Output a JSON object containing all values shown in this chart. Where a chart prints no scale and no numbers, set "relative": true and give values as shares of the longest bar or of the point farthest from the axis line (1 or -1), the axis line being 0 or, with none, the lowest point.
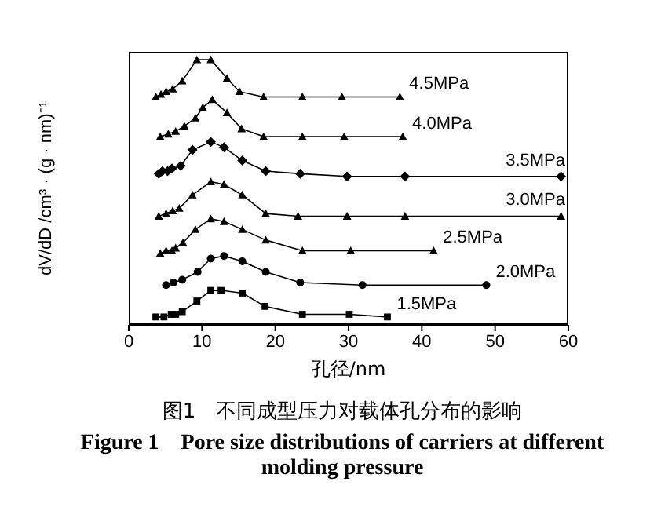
{
  "chart_data": {
    "type": "line",
    "title": "图1　不同成型压力对载体孔分布的影响",
    "subtitle": "Figure 1　Pore size distributions of carriers at different molding pressure",
    "xlabel": "孔径/nm",
    "ylabel": "dV/dD /cm³ · (g · nm)⁻¹",
    "relative": true,
    "xlim": [
      0,
      60
    ],
    "xticks": [
      0,
      10,
      20,
      30,
      40,
      50,
      60
    ],
    "line_style": "solid",
    "series": [
      {
        "name": "1.5MPa",
        "color": "#000000",
        "marker": "square",
        "x": [
          3.7,
          4.8,
          5.8,
          6.4,
          7.3,
          9.3,
          11.2,
          12.6,
          15.5,
          18.6,
          23.7,
          30.1,
          35.3
        ],
        "values": [
          0.03,
          0.03,
          0.04,
          0.04,
          0.05,
          0.09,
          0.13,
          0.13,
          0.12,
          0.07,
          0.04,
          0.04,
          0.03
        ]
      },
      {
        "name": "2.0MPa",
        "color": "#000000",
        "marker": "circle",
        "x": [
          5.1,
          6.1,
          7.3,
          9.4,
          11.2,
          13.0,
          15.5,
          18.7,
          23.4,
          31.9,
          48.8
        ],
        "values": [
          0.15,
          0.16,
          0.17,
          0.2,
          0.25,
          0.26,
          0.24,
          0.2,
          0.16,
          0.15,
          0.15
        ]
      },
      {
        "name": "2.5MPa",
        "color": "#000000",
        "marker": "triangle",
        "x": [
          4.3,
          5.1,
          5.9,
          6.4,
          7.4,
          9.1,
          11.2,
          13.0,
          15.5,
          18.7,
          23.7,
          30.3,
          41.6
        ],
        "values": [
          0.27,
          0.28,
          0.28,
          0.29,
          0.31,
          0.36,
          0.4,
          0.39,
          0.36,
          0.32,
          0.28,
          0.28,
          0.28
        ]
      },
      {
        "name": "3.0MPa",
        "color": "#000000",
        "marker": "triangle",
        "x": [
          4.1,
          5.1,
          6.0,
          6.9,
          8.7,
          11.2,
          13.0,
          15.5,
          18.7,
          23.1,
          29.8,
          37.7,
          59.0
        ],
        "values": [
          0.41,
          0.42,
          0.43,
          0.44,
          0.49,
          0.54,
          0.53,
          0.49,
          0.42,
          0.41,
          0.41,
          0.41,
          0.41
        ]
      },
      {
        "name": "3.5MPa",
        "color": "#000000",
        "marker": "diamond",
        "x": [
          4.1,
          4.6,
          5.3,
          5.9,
          7.1,
          8.7,
          11.2,
          13.0,
          15.5,
          18.7,
          23.4,
          29.8,
          37.7,
          59.0
        ],
        "values": [
          0.57,
          0.58,
          0.58,
          0.59,
          0.6,
          0.66,
          0.69,
          0.67,
          0.62,
          0.58,
          0.57,
          0.56,
          0.56,
          0.56
        ]
      },
      {
        "name": "4.0MPa",
        "color": "#000000",
        "marker": "triangle",
        "x": [
          4.3,
          5.4,
          6.4,
          7.6,
          9.1,
          10.1,
          11.4,
          13.4,
          15.4,
          18.4,
          23.7,
          29.4,
          37.4
        ],
        "values": [
          0.71,
          0.72,
          0.73,
          0.75,
          0.78,
          0.82,
          0.85,
          0.8,
          0.74,
          0.71,
          0.71,
          0.71,
          0.71
        ]
      },
      {
        "name": "4.5MPa",
        "color": "#000000",
        "marker": "triangle",
        "x": [
          3.7,
          4.4,
          5.1,
          6.0,
          7.3,
          9.3,
          11.2,
          13.4,
          15.1,
          18.4,
          23.7,
          29.1,
          37.0
        ],
        "values": [
          0.86,
          0.87,
          0.88,
          0.89,
          0.92,
          1,
          1,
          0.93,
          0.88,
          0.86,
          0.86,
          0.86,
          0.86
        ]
      }
    ]
  }
}
